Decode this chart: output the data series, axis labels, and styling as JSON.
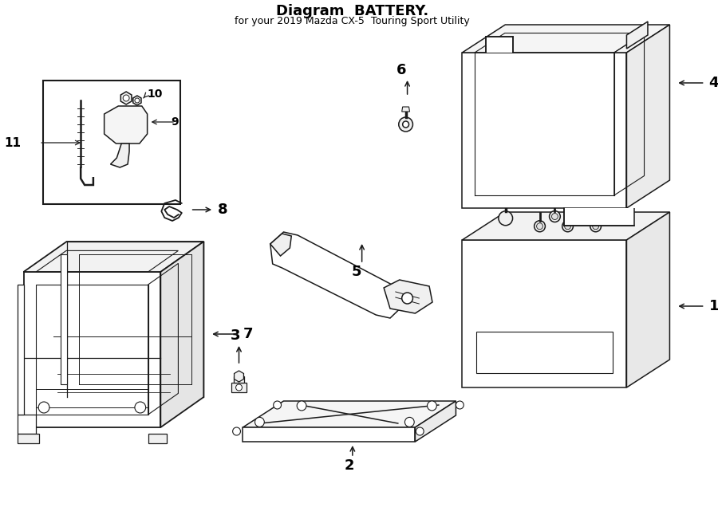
{
  "title": "Diagram  BATTERY.",
  "subtitle": "for your 2019 Mazda CX-5  Touring Sport Utility",
  "bg": "#ffffff",
  "lc": "#1a1a1a",
  "lw": 1.1
}
